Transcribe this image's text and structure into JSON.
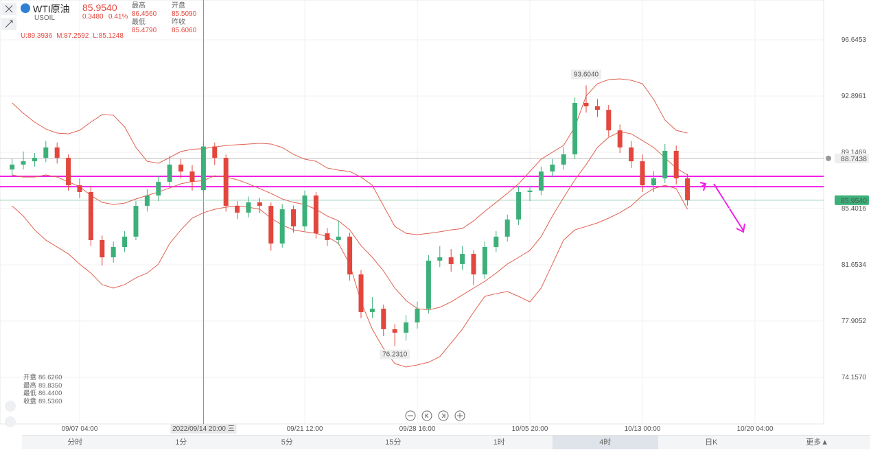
{
  "header": {
    "name": "WTI原油",
    "symbol": "USOIL",
    "price": "85.9540",
    "change": "0.3480",
    "change_pct": "0.41%",
    "stats": [
      [
        "最高",
        "86.4560"
      ],
      [
        "开盘",
        "85.5090"
      ],
      [
        "最低",
        "85.4790"
      ],
      [
        "昨收",
        "85.6060"
      ]
    ]
  },
  "band_readout": [
    "U:89.3936",
    "M:87.2592",
    "L:85.1248"
  ],
  "crosshair_info": [
    [
      "开盘",
      "86.6260"
    ],
    [
      "最高",
      "89.8350"
    ],
    [
      "最低",
      "86.4400"
    ],
    [
      "收盘",
      "89.5360"
    ]
  ],
  "tabs": [
    "分时",
    "1分",
    "5分",
    "15分",
    "1时",
    "4时",
    "日K",
    "更多▲"
  ],
  "chart_data": {
    "type": "candlestick",
    "categories": [
      null,
      null,
      null,
      null,
      null,
      null,
      "09/07 04:00",
      null,
      null,
      null,
      null,
      null,
      null,
      null,
      null,
      null,
      null,
      "2022/09/14 20:00 三",
      null,
      null,
      null,
      null,
      null,
      null,
      null,
      null,
      "09/21 12:00",
      null,
      null,
      null,
      null,
      null,
      null,
      null,
      null,
      null,
      "09/28 16:00",
      null,
      null,
      null,
      null,
      null,
      null,
      null,
      null,
      null,
      "10/05 20:00",
      null,
      null,
      null,
      null,
      null,
      null,
      null,
      null,
      null,
      "10/13 00:00",
      null,
      null,
      null,
      null,
      null,
      null,
      null,
      null,
      null,
      "10/20 04:00"
    ],
    "ohlc": [
      [
        88.0,
        88.7,
        87.6,
        88.33
      ],
      [
        88.33,
        89.2,
        88.0,
        88.55
      ],
      [
        88.55,
        89.1,
        88.2,
        88.78
      ],
      [
        88.78,
        89.9,
        88.5,
        89.47
      ],
      [
        89.47,
        89.8,
        88.4,
        88.78
      ],
      [
        88.78,
        89.0,
        86.6,
        86.95
      ],
      [
        86.95,
        87.4,
        86.1,
        86.5
      ],
      [
        86.5,
        86.9,
        82.9,
        83.3
      ],
      [
        83.3,
        83.6,
        81.6,
        82.15
      ],
      [
        82.15,
        83.2,
        81.8,
        82.84
      ],
      [
        82.84,
        83.9,
        82.5,
        83.53
      ],
      [
        83.53,
        85.9,
        83.3,
        85.58
      ],
      [
        85.58,
        86.7,
        85.2,
        86.27
      ],
      [
        86.27,
        87.6,
        85.9,
        87.18
      ],
      [
        87.18,
        88.9,
        86.9,
        88.33
      ],
      [
        88.33,
        88.7,
        87.4,
        87.87
      ],
      [
        87.87,
        88.3,
        86.6,
        87.18
      ],
      [
        86.626,
        89.835,
        86.44,
        89.536
      ],
      [
        89.536,
        89.8,
        88.3,
        88.78
      ],
      [
        88.78,
        89.0,
        85.2,
        85.58
      ],
      [
        85.58,
        85.9,
        84.7,
        85.13
      ],
      [
        85.13,
        86.2,
        84.8,
        85.81
      ],
      [
        85.81,
        86.1,
        85.1,
        85.58
      ],
      [
        85.58,
        85.8,
        82.6,
        83.07
      ],
      [
        83.07,
        85.7,
        82.8,
        85.35
      ],
      [
        85.35,
        85.6,
        83.8,
        84.21
      ],
      [
        84.21,
        86.6,
        83.9,
        86.27
      ],
      [
        86.27,
        86.5,
        83.4,
        83.75
      ],
      [
        83.75,
        84.1,
        82.9,
        83.3
      ],
      [
        83.3,
        84.6,
        83.0,
        83.53
      ],
      [
        83.53,
        83.8,
        80.6,
        81.01
      ],
      [
        81.01,
        81.3,
        78.1,
        78.5
      ],
      [
        78.5,
        79.5,
        78.1,
        78.73
      ],
      [
        78.73,
        79.0,
        76.9,
        77.36
      ],
      [
        77.36,
        77.7,
        76.231,
        77.13
      ],
      [
        77.13,
        78.3,
        76.6,
        77.81
      ],
      [
        77.81,
        79.2,
        77.4,
        78.73
      ],
      [
        78.73,
        82.3,
        78.4,
        81.93
      ],
      [
        81.93,
        82.9,
        81.5,
        82.15
      ],
      [
        82.15,
        82.7,
        81.2,
        81.7
      ],
      [
        81.7,
        82.9,
        81.3,
        82.38
      ],
      [
        82.38,
        82.6,
        80.3,
        81.01
      ],
      [
        81.01,
        83.2,
        80.7,
        82.84
      ],
      [
        82.84,
        83.9,
        82.5,
        83.53
      ],
      [
        83.53,
        85.0,
        83.2,
        84.67
      ],
      [
        84.67,
        86.9,
        84.3,
        86.5
      ],
      [
        86.5,
        86.9,
        85.9,
        86.6
      ],
      [
        86.6,
        88.2,
        86.3,
        87.87
      ],
      [
        87.87,
        88.7,
        87.5,
        88.33
      ],
      [
        88.33,
        89.5,
        88.0,
        89.01
      ],
      [
        89.01,
        92.8,
        88.7,
        92.44
      ],
      [
        92.44,
        93.604,
        91.8,
        92.21
      ],
      [
        92.21,
        92.7,
        91.5,
        91.98
      ],
      [
        91.98,
        92.3,
        90.2,
        90.61
      ],
      [
        90.61,
        91.0,
        89.1,
        89.47
      ],
      [
        89.47,
        89.9,
        88.1,
        88.55
      ],
      [
        88.55,
        89.0,
        86.5,
        86.95
      ],
      [
        86.95,
        87.9,
        86.5,
        87.41
      ],
      [
        87.41,
        89.7,
        87.1,
        89.24
      ],
      [
        89.24,
        89.6,
        87.0,
        87.41
      ],
      [
        87.41,
        87.7,
        85.6,
        85.954
      ],
      null,
      null,
      null,
      null,
      null,
      null
    ],
    "bands": [
      {
        "values": [
          92.44,
          91.75,
          91.16,
          90.7,
          90.43,
          90.38,
          90.61,
          91.16,
          91.66,
          91.62,
          90.84,
          89.47,
          88.55,
          88.42,
          88.8,
          89.2,
          89.35,
          89.3936,
          89.5,
          89.6,
          89.65,
          89.7,
          89.75,
          89.7,
          89.47,
          89.01,
          88.69,
          88.55,
          88.1,
          87.96,
          87.87,
          87.5,
          86.95,
          85.58,
          84.21,
          83.75,
          83.66,
          83.75,
          83.85,
          83.98,
          84.07,
          84.58,
          85.22,
          85.81,
          86.41,
          87.05,
          87.87,
          88.69,
          89.15,
          89.61,
          90.84,
          92.9,
          93.72,
          93.99,
          94.04,
          93.95,
          93.72,
          92.67,
          91.3,
          90.61,
          90.43,
          null,
          null,
          null,
          null,
          null,
          null
        ]
      },
      {
        "values": [
          87.64,
          87.5,
          87.5,
          87.64,
          87.5,
          87.18,
          86.86,
          86.27,
          85.81,
          85.67,
          85.76,
          86.04,
          86.27,
          86.5,
          86.77,
          87.05,
          87.2,
          87.2592,
          87.59,
          87.5,
          87.32,
          87.05,
          86.73,
          86.41,
          86.04,
          85.81,
          85.67,
          85.35,
          84.9,
          84.58,
          83.98,
          82.93,
          82.15,
          81.24,
          80.1,
          79.27,
          78.73,
          78.64,
          78.82,
          79.18,
          79.64,
          80.1,
          80.55,
          81.1,
          81.7,
          82.15,
          82.61,
          83.53,
          84.9,
          86.13,
          87.32,
          88.33,
          89.47,
          90.15,
          90.52,
          90.38,
          89.93,
          89.47,
          88.78,
          88.1,
          87.64,
          null,
          null,
          null,
          null,
          null,
          null
        ]
      },
      {
        "values": [
          85.58,
          84.9,
          83.98,
          83.3,
          82.84,
          82.38,
          81.7,
          81.1,
          80.33,
          80.1,
          80.33,
          80.78,
          81.1,
          81.7,
          83.07,
          83.98,
          84.76,
          85.1248,
          85.35,
          85.49,
          85.58,
          85.49,
          85.35,
          84.76,
          84.3,
          83.98,
          83.85,
          83.75,
          83.53,
          83.07,
          81.7,
          79.18,
          77.36,
          76.07,
          75.07,
          74.84,
          74.98,
          75.16,
          75.53,
          76.44,
          77.36,
          78.5,
          79.55,
          79.73,
          79.87,
          79.55,
          79.18,
          80.1,
          81.7,
          83.3,
          83.98,
          84.21,
          84.44,
          84.76,
          85.13,
          85.58,
          86.27,
          86.73,
          86.95,
          86.73,
          85.35,
          null,
          null,
          null,
          null,
          null,
          null
        ]
      }
    ],
    "band_color": "#e0604f",
    "up_color": "#3db07a",
    "down_color": "#e2463c",
    "extreme_labels": [
      {
        "value": 93.604,
        "label": "93.6040"
      },
      {
        "value": 76.231,
        "label": "76.2310"
      }
    ],
    "drawn_lines": [
      87.55,
      86.86
    ],
    "drawn_color": "#f01ee8",
    "alert_line": {
      "value": 88.7438,
      "label": "88.7438"
    },
    "last_price": {
      "value": 85.954,
      "label": "85.9540"
    },
    "crosshair_index_label": "2022/09/14 20:00 三",
    "ylim": [
      70.957,
      99.296
    ],
    "yticks": [
      96.6453,
      92.8961,
      89.1469,
      85.4016,
      81.6534,
      77.9052,
      {
        "value": 74.157,
        "label": "74.1570"
      }
    ]
  }
}
